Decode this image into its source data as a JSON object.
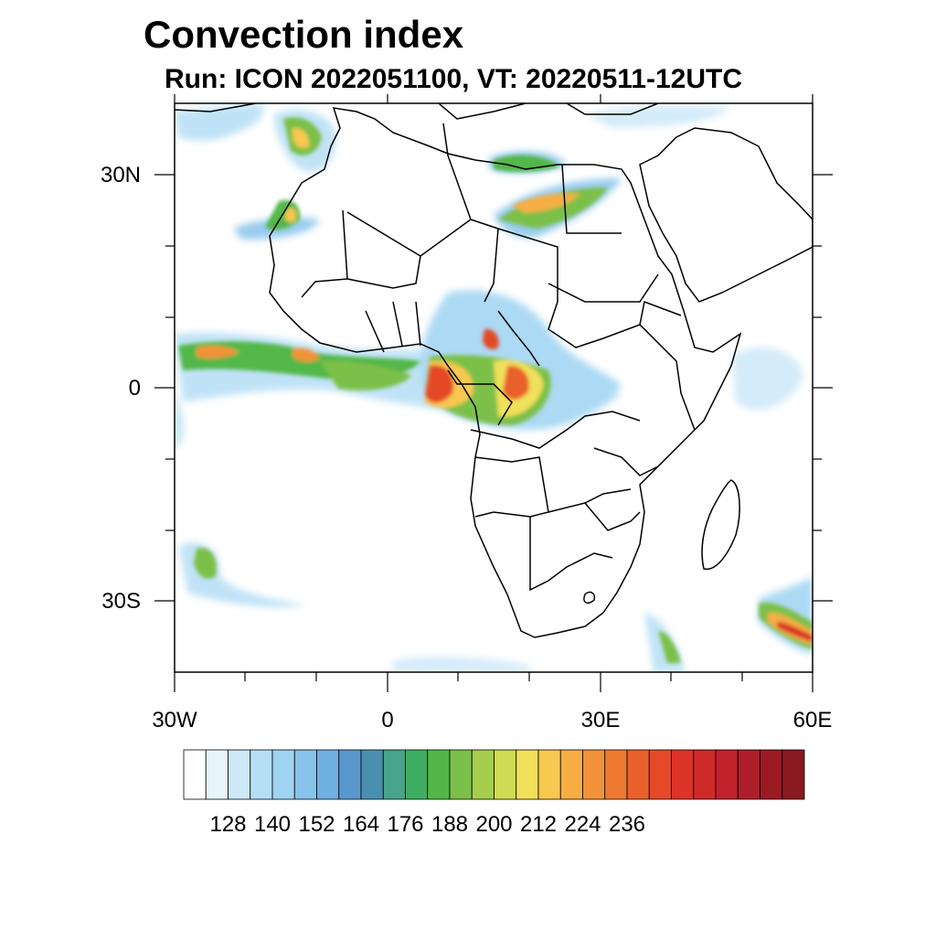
{
  "title": "Convection index",
  "subtitle": "Run: ICON 2022051100,  VT: 20220511-12UTC",
  "map": {
    "region": "Africa",
    "lat_labels": [
      "30N",
      "0",
      "30S"
    ],
    "lon_labels": [
      "30W",
      "0",
      "30E",
      "60E"
    ],
    "lat_range": [
      -40,
      40
    ],
    "lon_range": [
      -30,
      60
    ]
  },
  "colorbar": {
    "labels": [
      "128",
      "140",
      "152",
      "164",
      "176",
      "188",
      "200",
      "212",
      "224",
      "236"
    ],
    "colors": [
      "#ffffff",
      "#e8f4fc",
      "#cde8f8",
      "#b5def5",
      "#9ed3f2",
      "#87c3ea",
      "#6fb0e0",
      "#5997ce",
      "#4a8fb0",
      "#48a48a",
      "#40ae62",
      "#52b748",
      "#7bc04a",
      "#a6cd4c",
      "#cfdb52",
      "#f0e05a",
      "#f8c850",
      "#f6ae44",
      "#f29238",
      "#ee7a32",
      "#e9602c",
      "#e44a28",
      "#dc3428",
      "#cf2a2a",
      "#c0222c",
      "#ae1e2a",
      "#9c1a24",
      "#8a1820"
    ]
  }
}
